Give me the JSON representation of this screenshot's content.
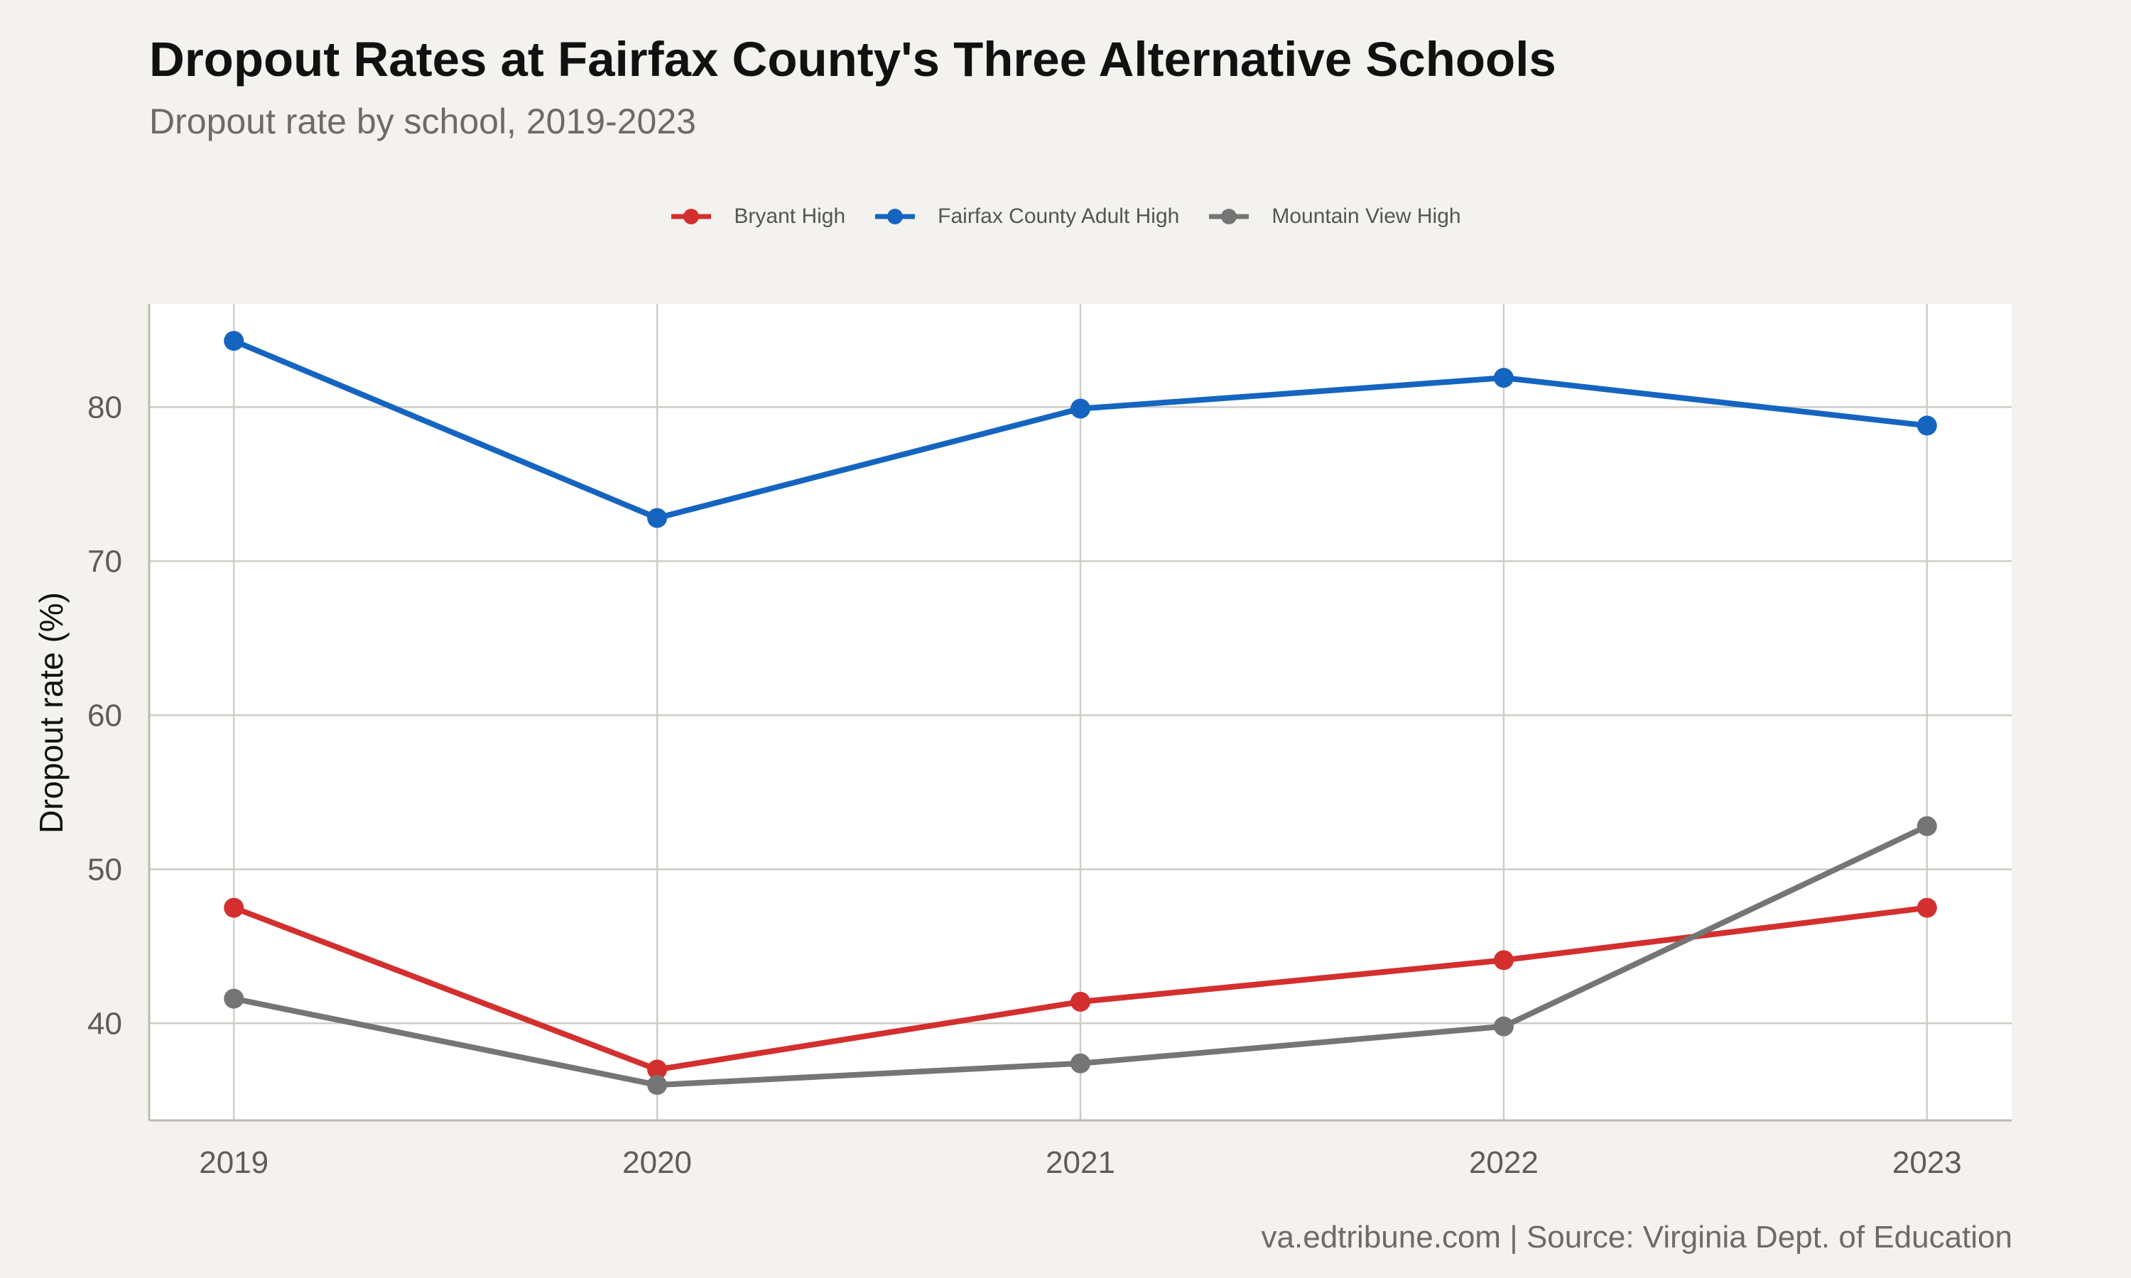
{
  "chart_data": {
    "type": "line",
    "title": "Dropout Rates at Fairfax County's Three Alternative Schools",
    "subtitle": "Dropout rate by school, 2019-2023",
    "xlabel": "",
    "ylabel": "Dropout rate (%)",
    "caption": "va.edtribune.com | Source: Virginia Dept. of Education",
    "x": [
      2019,
      2020,
      2021,
      2022,
      2023
    ],
    "x_tick_labels": [
      "2019",
      "2020",
      "2021",
      "2022",
      "2023"
    ],
    "y_ticks": [
      40,
      50,
      60,
      70,
      80
    ],
    "y_tick_labels": [
      "40",
      "50",
      "60",
      "70",
      "80"
    ],
    "xlim": [
      2018.8,
      2023.2
    ],
    "ylim": [
      33.7,
      86.7
    ],
    "grid": true,
    "legend_position": "top",
    "series": [
      {
        "name": "Bryant High",
        "color": "#d32f2f",
        "values": [
          47.5,
          37.0,
          41.4,
          44.1,
          47.5
        ]
      },
      {
        "name": "Fairfax County Adult High",
        "color": "#1565c0",
        "values": [
          84.3,
          72.8,
          79.9,
          81.9,
          78.8
        ]
      },
      {
        "name": "Mountain View High",
        "color": "#757575",
        "values": [
          41.6,
          36.0,
          37.4,
          39.8,
          52.8
        ]
      }
    ]
  }
}
